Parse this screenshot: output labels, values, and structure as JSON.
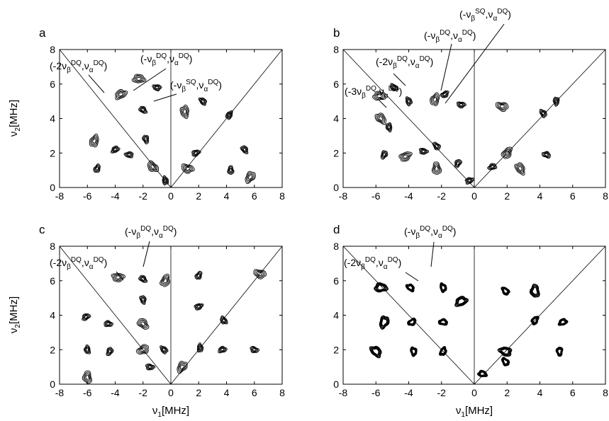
{
  "chart_data": [
    {
      "panel": "a",
      "type": "contour",
      "xlabel": "",
      "ylabel": "ν2[MHz]",
      "xlim": [
        -8,
        8
      ],
      "ylim": [
        0,
        8
      ],
      "xticks": [
        "-8",
        "-6",
        "-4",
        "-2",
        "0",
        "2",
        "4",
        "6",
        "8"
      ],
      "yticks": [
        "0",
        "2",
        "4",
        "6",
        "8"
      ],
      "annotations": [
        "(-2νβDQ,ναDQ)",
        "(-νβDQ,ναDQ)",
        "(-νβSQ,ναDQ)"
      ],
      "peaks": [
        {
          "x": -2.3,
          "y": 6.3
        },
        {
          "x": -2.0,
          "y": 4.5
        },
        {
          "x": -1.8,
          "y": 2.8
        },
        {
          "x": -5.5,
          "y": 2.7
        },
        {
          "x": -4.0,
          "y": 2.2
        },
        {
          "x": -3.0,
          "y": 1.9
        },
        {
          "x": -1.3,
          "y": 1.2
        },
        {
          "x": -0.4,
          "y": 0.4
        },
        {
          "x": -5.3,
          "y": 1.1
        },
        {
          "x": -3.6,
          "y": 5.4
        },
        {
          "x": -1.0,
          "y": 5.8
        },
        {
          "x": 2.3,
          "y": 5.0
        },
        {
          "x": 1.0,
          "y": 4.4
        },
        {
          "x": 4.2,
          "y": 4.2
        },
        {
          "x": 1.8,
          "y": 2.0
        },
        {
          "x": 1.2,
          "y": 1.1
        },
        {
          "x": 5.3,
          "y": 2.2
        },
        {
          "x": 4.3,
          "y": 1.0
        },
        {
          "x": 5.7,
          "y": 0.6
        }
      ]
    },
    {
      "panel": "b",
      "type": "contour",
      "xlabel": "",
      "ylabel": "",
      "xlim": [
        -8,
        8
      ],
      "ylim": [
        0,
        8
      ],
      "xticks": [
        "-8",
        "-6",
        "-4",
        "-2",
        "0",
        "2",
        "4",
        "6",
        "8"
      ],
      "yticks": [
        "0",
        "2",
        "4",
        "6",
        "8"
      ],
      "annotations": [
        "(-3νβDQ,ναDQ)",
        "(-2νβDQ,ναDQ)",
        "(-νβDQ,ναDQ)",
        "(-νβSQ,ναDQ)"
      ],
      "peaks": [
        {
          "x": -5.8,
          "y": 5.3
        },
        {
          "x": -4.9,
          "y": 5.8
        },
        {
          "x": -4.0,
          "y": 5.0
        },
        {
          "x": -2.4,
          "y": 5.1
        },
        {
          "x": -1.8,
          "y": 5.4
        },
        {
          "x": -0.8,
          "y": 4.8
        },
        {
          "x": -5.7,
          "y": 4.0
        },
        {
          "x": -5.2,
          "y": 3.5
        },
        {
          "x": -5.5,
          "y": 1.9
        },
        {
          "x": -4.2,
          "y": 1.8
        },
        {
          "x": -3.1,
          "y": 2.1
        },
        {
          "x": -2.3,
          "y": 2.4
        },
        {
          "x": -2.3,
          "y": 1.1
        },
        {
          "x": -1.0,
          "y": 1.4
        },
        {
          "x": -0.3,
          "y": 0.4
        },
        {
          "x": 1.7,
          "y": 4.7
        },
        {
          "x": 4.2,
          "y": 4.3
        },
        {
          "x": 5.0,
          "y": 5.0
        },
        {
          "x": 2.0,
          "y": 2.0
        },
        {
          "x": 1.1,
          "y": 1.2
        },
        {
          "x": 4.4,
          "y": 1.9
        },
        {
          "x": 2.8,
          "y": 1.1
        }
      ]
    },
    {
      "panel": "c",
      "type": "contour",
      "xlabel": "ν1[MHz]",
      "ylabel": "ν2[MHz]",
      "xlim": [
        -8,
        8
      ],
      "ylim": [
        0,
        8
      ],
      "xticks": [
        "-8",
        "-6",
        "-4",
        "-2",
        "0",
        "2",
        "4",
        "6",
        "8"
      ],
      "yticks": [
        "0",
        "2",
        "4",
        "6",
        "8"
      ],
      "annotations": [
        "(-2νβDQ,ναDQ)",
        "(-νβDQ,ναDQ)"
      ],
      "peaks": [
        {
          "x": -3.8,
          "y": 6.2
        },
        {
          "x": -2.0,
          "y": 6.1
        },
        {
          "x": -2.0,
          "y": 4.9
        },
        {
          "x": -0.4,
          "y": 6.0
        },
        {
          "x": -6.1,
          "y": 3.9
        },
        {
          "x": -4.5,
          "y": 3.5
        },
        {
          "x": -2.0,
          "y": 3.5
        },
        {
          "x": -6.0,
          "y": 2.0
        },
        {
          "x": -4.4,
          "y": 1.9
        },
        {
          "x": -2.0,
          "y": 2.0
        },
        {
          "x": -1.5,
          "y": 1.0
        },
        {
          "x": -0.5,
          "y": 2.0
        },
        {
          "x": -6.0,
          "y": 0.4
        },
        {
          "x": 2.0,
          "y": 6.3
        },
        {
          "x": 2.0,
          "y": 4.5
        },
        {
          "x": 6.4,
          "y": 6.4
        },
        {
          "x": 3.8,
          "y": 3.7
        },
        {
          "x": 2.1,
          "y": 2.1
        },
        {
          "x": 0.8,
          "y": 1.0
        },
        {
          "x": 3.7,
          "y": 2.0
        },
        {
          "x": 6.0,
          "y": 2.0
        }
      ]
    },
    {
      "panel": "d",
      "type": "contour",
      "xlabel": "ν1[MHz]",
      "ylabel": "",
      "xlim": [
        -8,
        8
      ],
      "ylim": [
        0,
        8
      ],
      "xticks": [
        "-8",
        "-6",
        "-4",
        "-2",
        "0",
        "2",
        "4",
        "6",
        "8"
      ],
      "yticks": [
        "0",
        "2",
        "4",
        "6",
        "8"
      ],
      "annotations": [
        "(-2νβDQ,ναDQ)",
        "(-νβDQ,ναDQ)"
      ],
      "peaks": [
        {
          "x": -5.7,
          "y": 5.6
        },
        {
          "x": -3.9,
          "y": 5.6
        },
        {
          "x": -1.9,
          "y": 5.6
        },
        {
          "x": -5.5,
          "y": 3.6
        },
        {
          "x": -3.8,
          "y": 3.6
        },
        {
          "x": -1.9,
          "y": 3.6
        },
        {
          "x": -6.0,
          "y": 1.9
        },
        {
          "x": -3.7,
          "y": 1.9
        },
        {
          "x": -1.9,
          "y": 1.9
        },
        {
          "x": -0.8,
          "y": 4.8
        },
        {
          "x": 0.5,
          "y": 0.6
        },
        {
          "x": 1.9,
          "y": 5.4
        },
        {
          "x": 3.7,
          "y": 5.4
        },
        {
          "x": 3.7,
          "y": 3.7
        },
        {
          "x": 5.4,
          "y": 3.6
        },
        {
          "x": 1.9,
          "y": 1.9
        },
        {
          "x": 1.9,
          "y": 1.3
        },
        {
          "x": 5.2,
          "y": 1.9
        }
      ]
    }
  ],
  "panels": {
    "a": {
      "letter": "a",
      "ann": [
        {
          "pre": "(-2ν",
          "s1": "β",
          "p1": "DQ",
          "mid": ",ν",
          "s2": "α",
          "p2": "DQ",
          "post": ")"
        },
        {
          "pre": "(-ν",
          "s1": "β",
          "p1": "DQ",
          "mid": ",ν",
          "s2": "α",
          "p2": "DQ",
          "post": ")"
        },
        {
          "pre": "(-ν",
          "s1": "β",
          "p1": "SQ",
          "mid": ",ν",
          "s2": "α",
          "p2": "DQ",
          "post": ")"
        }
      ]
    },
    "b": {
      "letter": "b",
      "ann": [
        {
          "pre": "(-3ν",
          "s1": "β",
          "p1": "DQ",
          "mid": ",ν",
          "s2": "α",
          "p2": "DQ",
          "post": ")"
        },
        {
          "pre": "(-2ν",
          "s1": "β",
          "p1": "DQ",
          "mid": ",ν",
          "s2": "α",
          "p2": "DQ",
          "post": ")"
        },
        {
          "pre": "(-ν",
          "s1": "β",
          "p1": "DQ",
          "mid": ",ν",
          "s2": "α",
          "p2": "DQ",
          "post": ")"
        },
        {
          "pre": "(-ν",
          "s1": "β",
          "p1": "SQ",
          "mid": ",ν",
          "s2": "α",
          "p2": "DQ",
          "post": ")"
        }
      ]
    },
    "c": {
      "letter": "c",
      "ann": [
        {
          "pre": "(-2ν",
          "s1": "β",
          "p1": "DQ",
          "mid": ",ν",
          "s2": "α",
          "p2": "DQ",
          "post": ")"
        },
        {
          "pre": "(-ν",
          "s1": "β",
          "p1": "DQ",
          "mid": ",ν",
          "s2": "α",
          "p2": "DQ",
          "post": ")"
        }
      ]
    },
    "d": {
      "letter": "d",
      "ann": [
        {
          "pre": "(-2ν",
          "s1": "β",
          "p1": "DQ",
          "mid": ",ν",
          "s2": "α",
          "p2": "DQ",
          "post": ")"
        },
        {
          "pre": "(-ν",
          "s1": "β",
          "p1": "DQ",
          "mid": ",ν",
          "s2": "α",
          "p2": "DQ",
          "post": ")"
        }
      ]
    }
  },
  "axis_labels": {
    "y_main": "ν",
    "y_sub": "2",
    "y_unit": "[MHz]",
    "x_main": "ν",
    "x_sub": "1",
    "x_unit": "[MHz]"
  }
}
